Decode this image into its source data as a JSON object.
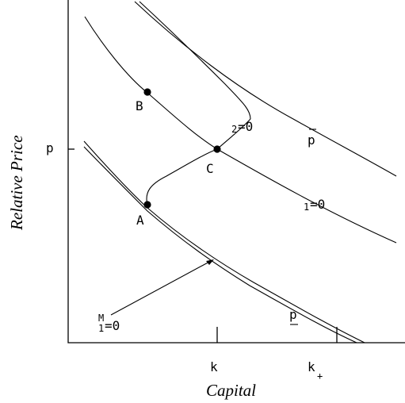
{
  "axes": {
    "y_title": "Relative Price",
    "x_title": "Capital",
    "y_tick": "p",
    "x_tick_k": "k",
    "x_tick_kplus": "k",
    "x_tick_kplus_sub": "+"
  },
  "points": {
    "a": "A",
    "b": "B",
    "c": "C"
  },
  "curve_labels": {
    "upper_sub": "2",
    "upper_rest": "=0",
    "middle_sub": "1",
    "middle_rest": "=0",
    "locus_top": "M",
    "locus_sub": "1",
    "locus_rest": "=0",
    "p_bar": "p",
    "p_under": "p"
  }
}
